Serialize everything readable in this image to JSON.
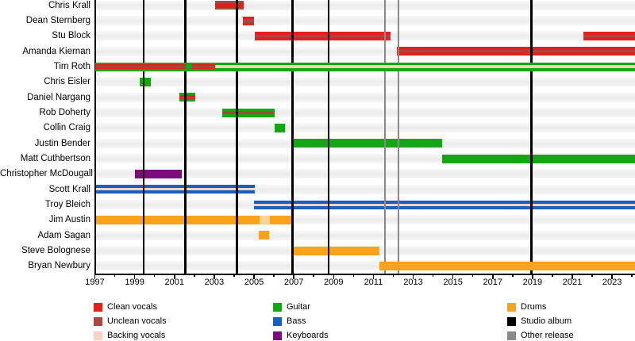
{
  "chart_data": {
    "type": "timeline",
    "description": "Band members timeline chart",
    "x_axis": {
      "start": 1997,
      "end": 2024.15,
      "tick_years": [
        1997,
        1999,
        2001,
        2003,
        2005,
        2007,
        2009,
        2011,
        2013,
        2015,
        2017,
        2019,
        2021,
        2023
      ],
      "minor_tick_years": [
        1998,
        2000,
        2002,
        2004,
        2006,
        2008,
        2010,
        2012,
        2014,
        2016,
        2018,
        2020,
        2022,
        2024
      ]
    },
    "colors": {
      "clean_vocals": "#e3201b",
      "unclean_vocals": "#a8463f",
      "backing_vocals": "#f8d0c4",
      "guitar": "#15a615",
      "bass": "#1660c2",
      "keyboards": "#7c0d7c",
      "drums": "#f9a21c",
      "drums_faded": "#fcd39a",
      "studio_album": "#000000",
      "other_release": "#8a8a8a",
      "row_track": "#f0f0f0"
    },
    "members": [
      {
        "name": "Chris Krall",
        "segments": [
          {
            "from": 2003.05,
            "to": 2004.5,
            "layers": [
              {
                "role": "unclean_vocals",
                "h": 11
              },
              {
                "role": "clean_vocals",
                "h": 6
              }
            ]
          }
        ]
      },
      {
        "name": "Dean Sternberg",
        "segments": [
          {
            "from": 2004.45,
            "to": 2005.0,
            "layers": [
              {
                "role": "clean_vocals",
                "h": 11
              },
              {
                "role": "unclean_vocals",
                "h": 5
              }
            ]
          }
        ]
      },
      {
        "name": "Stu Block",
        "segments": [
          {
            "from": 2005.05,
            "to": 2011.85,
            "layers": [
              {
                "role": "clean_vocals",
                "h": 11
              },
              {
                "role": "unclean_vocals",
                "h": 3
              }
            ]
          },
          {
            "from": 2021.55,
            "to": 2024.15,
            "layers": [
              {
                "role": "clean_vocals",
                "h": 11
              },
              {
                "role": "unclean_vocals",
                "h": 3
              }
            ]
          }
        ]
      },
      {
        "name": "Amanda Kiernan",
        "segments": [
          {
            "from": 2012.2,
            "to": 2024.15,
            "layers": [
              {
                "role": "clean_vocals",
                "h": 11
              },
              {
                "role": "unclean_vocals",
                "h": 3
              }
            ]
          }
        ]
      },
      {
        "name": "Tim Roth",
        "above_lines": true,
        "segments": [
          {
            "from": 1997.0,
            "to": 2001.55,
            "layers": [
              {
                "role": "guitar",
                "h": 11
              },
              {
                "role": "clean_vocals",
                "h": 6
              },
              {
                "role": "unclean_vocals",
                "h": 3
              }
            ]
          },
          {
            "from": 2001.55,
            "to": 2001.9,
            "layers": [
              {
                "role": "guitar",
                "h": 11
              }
            ]
          },
          {
            "from": 2001.9,
            "to": 2003.05,
            "layers": [
              {
                "role": "guitar",
                "h": 11
              },
              {
                "role": "clean_vocals",
                "h": 6
              },
              {
                "role": "unclean_vocals",
                "h": 3
              }
            ]
          },
          {
            "from": 2003.05,
            "to": 2024.15,
            "layers": [
              {
                "role": "guitar",
                "h": 11
              },
              {
                "role": "backing_vocals",
                "h": 4
              }
            ]
          }
        ]
      },
      {
        "name": "Chris Eisler",
        "segments": [
          {
            "from": 1999.25,
            "to": 1999.8,
            "layers": [
              {
                "role": "guitar",
                "h": 11
              }
            ]
          }
        ]
      },
      {
        "name": "Daniel Nargang",
        "segments": [
          {
            "from": 2001.25,
            "to": 2002.05,
            "layers": [
              {
                "role": "guitar",
                "h": 11
              },
              {
                "role": "clean_vocals",
                "h": 5
              },
              {
                "role": "unclean_vocals",
                "h": 2.5
              }
            ]
          }
        ]
      },
      {
        "name": "Rob Doherty",
        "segments": [
          {
            "from": 2003.4,
            "to": 2006.05,
            "layers": [
              {
                "role": "guitar",
                "h": 11
              },
              {
                "role": "unclean_vocals",
                "h": 4
              }
            ]
          }
        ]
      },
      {
        "name": "Collin Craig",
        "segments": [
          {
            "from": 2006.05,
            "to": 2006.55,
            "layers": [
              {
                "role": "guitar",
                "h": 11
              }
            ]
          }
        ]
      },
      {
        "name": "Justin Bender",
        "segments": [
          {
            "from": 2006.95,
            "to": 2014.45,
            "layers": [
              {
                "role": "guitar",
                "h": 11
              }
            ]
          }
        ]
      },
      {
        "name": "Matt Cuthbertson",
        "segments": [
          {
            "from": 2014.45,
            "to": 2024.15,
            "layers": [
              {
                "role": "guitar",
                "h": 11
              }
            ]
          }
        ]
      },
      {
        "name": "Christopher McDougall",
        "segments": [
          {
            "from": 1999.0,
            "to": 2001.35,
            "layers": [
              {
                "role": "keyboards",
                "h": 11
              }
            ]
          }
        ]
      },
      {
        "name": "Scott Krall",
        "segments": [
          {
            "from": 1997.0,
            "to": 2005.05,
            "layers": [
              {
                "role": "bass",
                "h": 11
              },
              {
                "role": "backing_vocals",
                "h": 3
              }
            ]
          }
        ]
      },
      {
        "name": "Troy Bleich",
        "segments": [
          {
            "from": 2005.0,
            "to": 2024.15,
            "layers": [
              {
                "role": "bass",
                "h": 11
              },
              {
                "role": "backing_vocals",
                "h": 3
              }
            ]
          }
        ]
      },
      {
        "name": "Jim Austin",
        "segments": [
          {
            "from": 1997.0,
            "to": 2005.27,
            "layers": [
              {
                "role": "drums",
                "h": 11
              }
            ]
          },
          {
            "from": 2005.27,
            "to": 2005.8,
            "layers": [
              {
                "role": "drums_faded",
                "h": 11
              }
            ]
          },
          {
            "from": 2005.8,
            "to": 2006.95,
            "layers": [
              {
                "role": "drums",
                "h": 11
              }
            ]
          }
        ]
      },
      {
        "name": "Adam Sagan",
        "segments": [
          {
            "from": 2005.25,
            "to": 2005.75,
            "layers": [
              {
                "role": "drums",
                "h": 11
              }
            ]
          }
        ]
      },
      {
        "name": "Steve Bolognese",
        "segments": [
          {
            "from": 2006.95,
            "to": 2011.3,
            "layers": [
              {
                "role": "drums",
                "h": 11
              }
            ]
          }
        ]
      },
      {
        "name": "Bryan Newbury",
        "above_lines": true,
        "segments": [
          {
            "from": 2011.3,
            "to": 2024.15,
            "layers": [
              {
                "role": "drums",
                "h": 11
              }
            ]
          }
        ]
      }
    ],
    "event_lines": {
      "studio_albums": [
        1999.45,
        2001.55,
        2004.15,
        2006.93,
        2008.75,
        2018.95
      ],
      "other_releases": [
        2011.6,
        2012.25
      ]
    },
    "legend": {
      "columns": [
        {
          "items": [
            {
              "label": "Clean vocals",
              "role": "clean_vocals"
            },
            {
              "label": "Unclean vocals",
              "role": "unclean_vocals"
            },
            {
              "label": "Backing vocals",
              "role": "backing_vocals"
            }
          ]
        },
        {
          "items": [
            {
              "label": "Guitar",
              "role": "guitar"
            },
            {
              "label": "Bass",
              "role": "bass"
            },
            {
              "label": "Keyboards",
              "role": "keyboards"
            }
          ]
        },
        {
          "items": [
            {
              "label": "Drums",
              "role": "drums"
            },
            {
              "label": "Studio album",
              "role": "studio_album"
            },
            {
              "label": "Other release",
              "role": "other_release"
            }
          ]
        }
      ]
    }
  }
}
